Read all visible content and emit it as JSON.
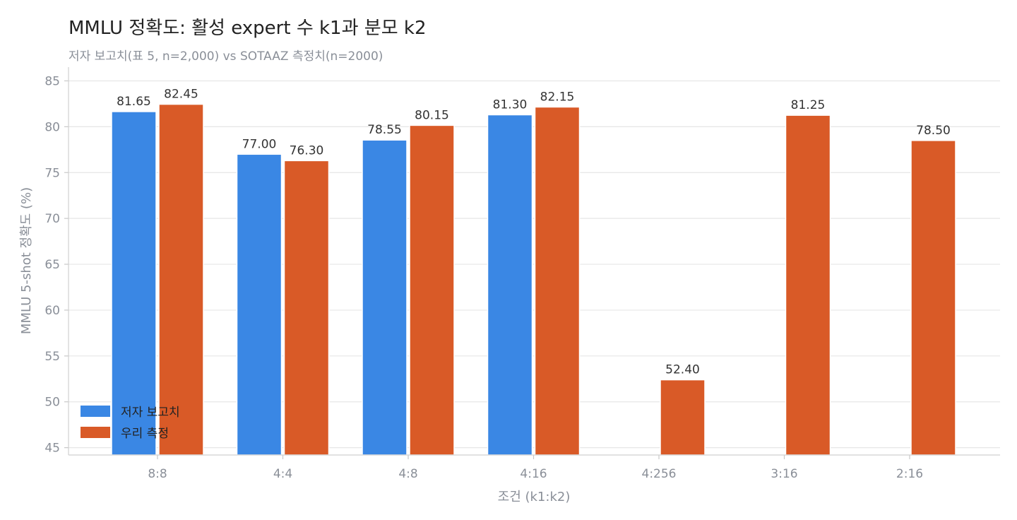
{
  "chart_data": {
    "type": "bar",
    "title": "MMLU 정확도: 활성 expert 수 k1과 분모 k2",
    "subtitle": "저자 보고치(표 5, n=2,000) vs SOTAAZ 측정치(n=2000)",
    "xlabel": "조건 (k1:k2)",
    "ylabel": "MMLU 5-shot 정확도 (%)",
    "categories": [
      "8:8",
      "4:4",
      "4:8",
      "4:16",
      "4:256",
      "3:16",
      "2:16"
    ],
    "series": [
      {
        "name": "저자 보고치",
        "color": "#3a87e4",
        "values": [
          81.65,
          77.0,
          78.55,
          81.3,
          null,
          null,
          null
        ],
        "labels": [
          "81.65",
          "77.00",
          "78.55",
          "81.30",
          null,
          null,
          null
        ]
      },
      {
        "name": "우리 측정",
        "color": "#d95a27",
        "values": [
          82.45,
          76.3,
          80.15,
          82.15,
          52.4,
          81.25,
          78.5
        ],
        "labels": [
          "82.45",
          "76.30",
          "80.15",
          "82.15",
          "52.40",
          "81.25",
          "78.50"
        ]
      }
    ],
    "ylim": [
      44.2,
      86.5
    ],
    "yticks": [
      45,
      50,
      55,
      60,
      65,
      70,
      75,
      80,
      85
    ],
    "grid": "horizontal",
    "legend_position": "lower-left"
  }
}
